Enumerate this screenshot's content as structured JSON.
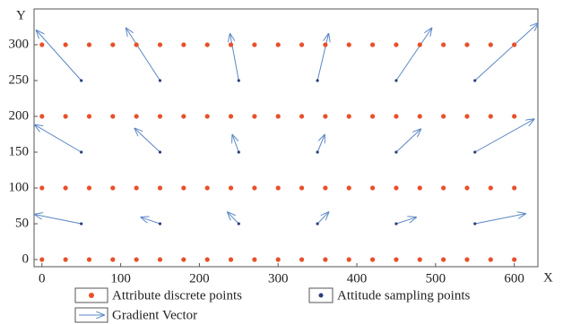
{
  "chart_data": {
    "type": "vector-field",
    "x_label": "X",
    "y_label": "Y",
    "xlim": [
      -10,
      630
    ],
    "ylim": [
      -10,
      350
    ],
    "xticks": [
      0,
      100,
      200,
      300,
      400,
      500,
      600
    ],
    "yticks": [
      0,
      50,
      100,
      150,
      200,
      250,
      300
    ],
    "series": [
      {
        "name": "Attribute discrete points",
        "color": "#e8502a",
        "x": [
          0,
          30,
          60,
          90,
          120,
          150,
          180,
          210,
          240,
          270,
          300,
          330,
          360,
          390,
          420,
          450,
          480,
          510,
          540,
          570,
          600,
          0,
          30,
          60,
          90,
          120,
          150,
          180,
          210,
          240,
          270,
          300,
          330,
          360,
          390,
          420,
          450,
          480,
          510,
          540,
          570,
          600,
          0,
          30,
          60,
          90,
          120,
          150,
          180,
          210,
          240,
          270,
          300,
          330,
          360,
          390,
          420,
          450,
          480,
          510,
          540,
          570,
          600,
          0,
          30,
          60,
          90,
          120,
          150,
          180,
          210,
          240,
          270,
          300,
          330,
          360,
          390,
          420,
          450,
          480,
          510,
          540,
          570,
          600
        ],
        "y": [
          0,
          0,
          0,
          0,
          0,
          0,
          0,
          0,
          0,
          0,
          0,
          0,
          0,
          0,
          0,
          0,
          0,
          0,
          0,
          0,
          0,
          100,
          100,
          100,
          100,
          100,
          100,
          100,
          100,
          100,
          100,
          100,
          100,
          100,
          100,
          100,
          100,
          100,
          100,
          100,
          100,
          100,
          200,
          200,
          200,
          200,
          200,
          200,
          200,
          200,
          200,
          200,
          200,
          200,
          200,
          200,
          200,
          200,
          200,
          200,
          200,
          200,
          200,
          300,
          300,
          300,
          300,
          300,
          300,
          300,
          300,
          300,
          300,
          300,
          300,
          300,
          300,
          300,
          300,
          300,
          300,
          300,
          300,
          300
        ]
      },
      {
        "name": "Attitude sampling points",
        "color": "#2a3f7a",
        "x": [
          50,
          150,
          250,
          350,
          450,
          550,
          50,
          150,
          250,
          350,
          450,
          550,
          50,
          150,
          250,
          350,
          450,
          550
        ],
        "y": [
          50,
          50,
          50,
          50,
          50,
          50,
          150,
          150,
          150,
          150,
          150,
          150,
          250,
          250,
          250,
          250,
          250,
          250
        ]
      },
      {
        "name": "Gradient Vector",
        "color": "#5b87c5",
        "x_end": [
          -9,
          126,
          236,
          364,
          475,
          614,
          -9,
          118,
          242,
          359,
          481,
          625,
          -7,
          107,
          239,
          364,
          495,
          630
        ],
        "y_end": [
          63,
          59,
          66,
          66,
          59,
          64,
          188,
          183,
          174,
          174,
          182,
          196,
          320,
          323,
          315,
          315,
          323,
          330
        ]
      }
    ]
  }
}
